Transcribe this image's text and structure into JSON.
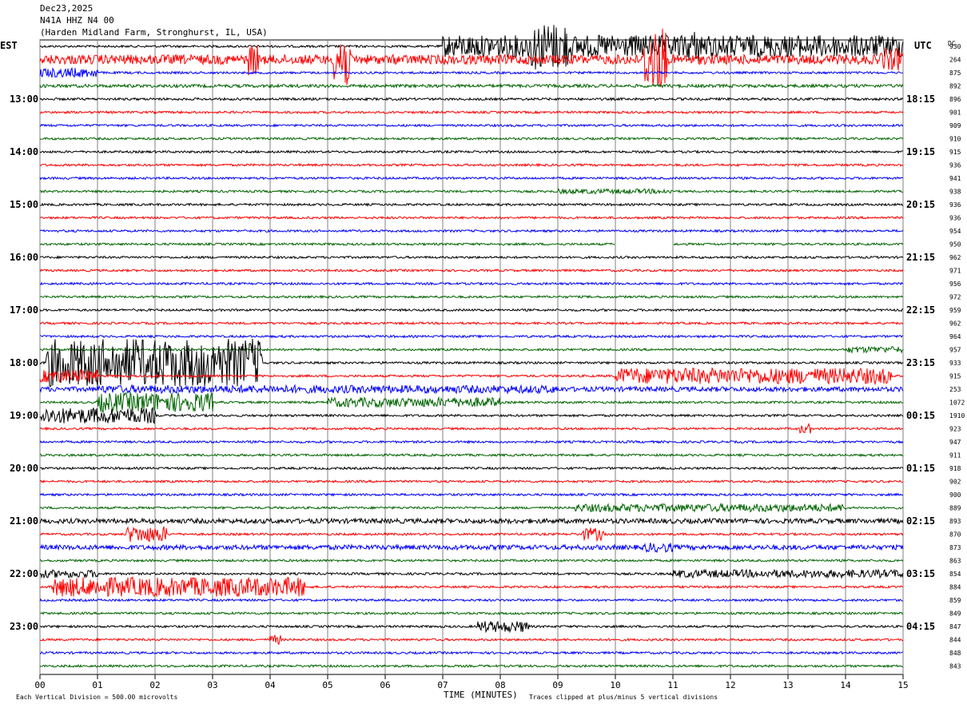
{
  "header": {
    "date": "Dec23,2025",
    "station": "N41A HHZ N4 00",
    "location": "(Harden Midland Farm, Stronghurst, IL, USA)"
  },
  "left_label": "EST",
  "right_label": "UTC",
  "dc_label": "DC",
  "footer": {
    "scale": "Each Vertical Division =  500.00 microvolts",
    "xlabel": "TIME (MINUTES)",
    "clip_note": "Traces clipped at plus/minus 5 vertical divisions"
  },
  "colors": {
    "black": "#000000",
    "red": "#ff0000",
    "blue": "#0000ff",
    "green": "#006400",
    "grid": "#808080"
  },
  "chart_data": {
    "type": "line",
    "title": "",
    "xlabel": "TIME (MINUTES)",
    "ylabel": "",
    "x_ticks": [
      "00",
      "01",
      "02",
      "03",
      "04",
      "05",
      "06",
      "07",
      "08",
      "09",
      "10",
      "11",
      "12",
      "13",
      "14",
      "15"
    ],
    "xlim": [
      0,
      15
    ],
    "left_time_labels": [
      "13:00",
      "14:00",
      "15:00",
      "16:00",
      "17:00",
      "18:00",
      "19:00",
      "20:00",
      "21:00",
      "22:00",
      "23:00"
    ],
    "right_time_labels": [
      "18:15",
      "19:15",
      "20:15",
      "21:15",
      "22:15",
      "23:15",
      "00:15",
      "01:15",
      "02:15",
      "03:15",
      "04:15"
    ],
    "trace_color_cycle": [
      "black",
      "red",
      "blue",
      "green"
    ],
    "dc_offsets": [
      930,
      264,
      875,
      892,
      896,
      901,
      909,
      910,
      915,
      936,
      941,
      938,
      936,
      936,
      954,
      950,
      962,
      971,
      956,
      972,
      959,
      962,
      964,
      957,
      933,
      915,
      253,
      1072,
      1910,
      923,
      947,
      911,
      918,
      902,
      900,
      889,
      893,
      870,
      873,
      863,
      854,
      884,
      859,
      849,
      847,
      844,
      848,
      843
    ],
    "traces_per_hour": 4,
    "minutes_per_trace": 15
  }
}
